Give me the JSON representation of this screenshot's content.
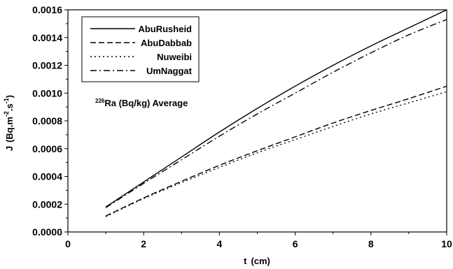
{
  "chart_data": {
    "type": "line",
    "xlabel_main": "t",
    "xlabel_unit": "(cm)",
    "ylabel_main": "J",
    "ylabel_unit": "(Bq.m",
    "ylabel_exp1": "-2",
    "ylabel_mid": ".s",
    "ylabel_exp2": "-1",
    "ylabel_close": ")",
    "xlim": [
      0,
      10
    ],
    "ylim": [
      0,
      0.0016
    ],
    "x_ticks": [
      "0",
      "2",
      "4",
      "6",
      "8",
      "10"
    ],
    "y_ticks": [
      "0.0000",
      "0.0002",
      "0.0004",
      "0.0006",
      "0.0008",
      "0.0010",
      "0.0012",
      "0.0014",
      "0.0016"
    ],
    "annotation": {
      "sup": "226",
      "text": "Ra  (Bq/kg)   Average"
    },
    "legend_position": "top-left",
    "x": [
      1,
      2,
      3,
      4,
      5,
      6,
      7,
      8,
      9,
      10
    ],
    "series": [
      {
        "name": "AbuRusheid",
        "dash": "solid",
        "values": [
          0.00018,
          0.00036,
          0.00054,
          0.00072,
          0.00089,
          0.00105,
          0.0012,
          0.00134,
          0.00147,
          0.0016
        ]
      },
      {
        "name": "AbuDabbab",
        "dash": "dash",
        "values": [
          0.000115,
          0.000245,
          0.000365,
          0.00048,
          0.000585,
          0.000685,
          0.000785,
          0.000875,
          0.00096,
          0.00105
        ]
      },
      {
        "name": "Nuweibi",
        "dash": "dot",
        "values": [
          0.00011,
          0.00024,
          0.000355,
          0.000465,
          0.00057,
          0.000665,
          0.00076,
          0.00085,
          0.00093,
          0.00101
        ]
      },
      {
        "name": "UmNaggat",
        "dash": "dashdot",
        "values": [
          0.000175,
          0.00035,
          0.00052,
          0.00069,
          0.00085,
          0.001,
          0.00115,
          0.00129,
          0.00142,
          0.00153
        ]
      }
    ]
  }
}
